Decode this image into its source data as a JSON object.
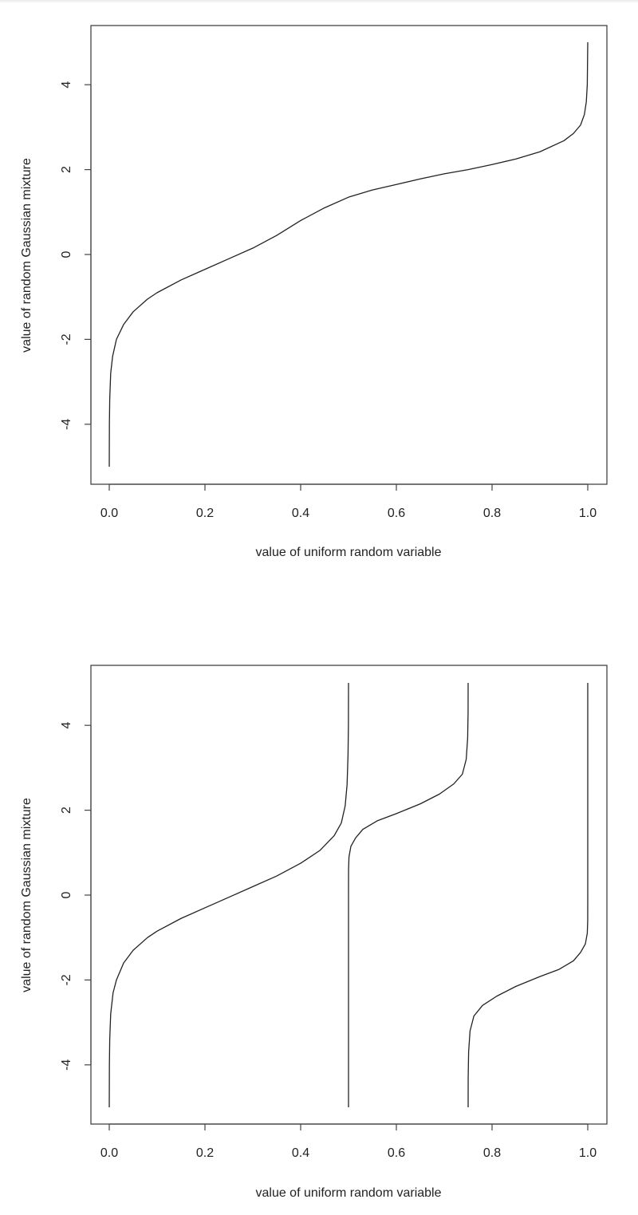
{
  "chart_data": [
    {
      "type": "line",
      "title": "",
      "xlabel": "value of uniform random variable",
      "ylabel": "value of random Gaussian mixture",
      "xlim": [
        0,
        1
      ],
      "ylim": [
        -5,
        5
      ],
      "xticks": [
        "0.0",
        "0.2",
        "0.4",
        "0.6",
        "0.8",
        "1.0"
      ],
      "yticks": [
        "-4",
        "-2",
        "0",
        "2",
        "4"
      ],
      "grid": false,
      "legend": "none",
      "line_color": "#222222",
      "series": [
        {
          "points": [
            [
              0.0,
              -5.0
            ],
            [
              0.0003,
              -4.0
            ],
            [
              0.001,
              -3.4
            ],
            [
              0.003,
              -2.8
            ],
            [
              0.007,
              -2.4
            ],
            [
              0.015,
              -2.0
            ],
            [
              0.03,
              -1.65
            ],
            [
              0.05,
              -1.35
            ],
            [
              0.08,
              -1.05
            ],
            [
              0.1,
              -0.9
            ],
            [
              0.15,
              -0.6
            ],
            [
              0.2,
              -0.35
            ],
            [
              0.25,
              -0.1
            ],
            [
              0.3,
              0.15
            ],
            [
              0.35,
              0.45
            ],
            [
              0.4,
              0.8
            ],
            [
              0.45,
              1.1
            ],
            [
              0.5,
              1.35
            ],
            [
              0.55,
              1.52
            ],
            [
              0.6,
              1.65
            ],
            [
              0.65,
              1.78
            ],
            [
              0.7,
              1.9
            ],
            [
              0.75,
              2.0
            ],
            [
              0.8,
              2.12
            ],
            [
              0.85,
              2.25
            ],
            [
              0.9,
              2.42
            ],
            [
              0.95,
              2.68
            ],
            [
              0.97,
              2.85
            ],
            [
              0.985,
              3.05
            ],
            [
              0.993,
              3.3
            ],
            [
              0.997,
              3.6
            ],
            [
              0.999,
              4.0
            ],
            [
              1.0,
              5.0
            ]
          ]
        }
      ]
    },
    {
      "type": "line",
      "title": "",
      "xlabel": "value of uniform random variable",
      "ylabel": "value of random Gaussian mixture",
      "xlim": [
        0,
        1
      ],
      "ylim": [
        -5,
        5
      ],
      "xticks": [
        "0.0",
        "0.2",
        "0.4",
        "0.6",
        "0.8",
        "1.0"
      ],
      "yticks": [
        "-4",
        "-2",
        "0",
        "2",
        "4"
      ],
      "grid": false,
      "legend": "none",
      "line_color": "#222222",
      "series": [
        {
          "points": [
            [
              0.0,
              -5.0
            ],
            [
              0.0003,
              -4.0
            ],
            [
              0.001,
              -3.4
            ],
            [
              0.003,
              -2.8
            ],
            [
              0.008,
              -2.3
            ],
            [
              0.015,
              -2.0
            ],
            [
              0.03,
              -1.6
            ],
            [
              0.05,
              -1.3
            ],
            [
              0.08,
              -1.0
            ],
            [
              0.1,
              -0.85
            ],
            [
              0.15,
              -0.55
            ],
            [
              0.2,
              -0.3
            ],
            [
              0.25,
              -0.05
            ],
            [
              0.3,
              0.2
            ],
            [
              0.35,
              0.45
            ],
            [
              0.4,
              0.75
            ],
            [
              0.44,
              1.05
            ],
            [
              0.47,
              1.4
            ],
            [
              0.485,
              1.7
            ],
            [
              0.493,
              2.1
            ],
            [
              0.497,
              2.6
            ],
            [
              0.499,
              3.3
            ],
            [
              0.4998,
              4.0
            ],
            [
              0.5,
              5.0
            ]
          ]
        },
        {
          "points": [
            [
              0.5,
              -5.0
            ],
            [
              0.5,
              0.0
            ],
            [
              0.5001,
              0.6
            ],
            [
              0.501,
              0.9
            ],
            [
              0.505,
              1.15
            ],
            [
              0.515,
              1.35
            ],
            [
              0.53,
              1.55
            ],
            [
              0.56,
              1.75
            ],
            [
              0.6,
              1.92
            ],
            [
              0.65,
              2.15
            ],
            [
              0.69,
              2.38
            ],
            [
              0.72,
              2.62
            ],
            [
              0.738,
              2.85
            ],
            [
              0.746,
              3.2
            ],
            [
              0.749,
              3.7
            ],
            [
              0.7499,
              4.3
            ],
            [
              0.75,
              5.0
            ]
          ]
        },
        {
          "points": [
            [
              0.75,
              -5.0
            ],
            [
              0.7501,
              -4.3
            ],
            [
              0.751,
              -3.7
            ],
            [
              0.754,
              -3.2
            ],
            [
              0.762,
              -2.85
            ],
            [
              0.78,
              -2.6
            ],
            [
              0.81,
              -2.38
            ],
            [
              0.85,
              -2.15
            ],
            [
              0.9,
              -1.92
            ],
            [
              0.94,
              -1.75
            ],
            [
              0.97,
              -1.55
            ],
            [
              0.985,
              -1.35
            ],
            [
              0.995,
              -1.15
            ],
            [
              0.999,
              -0.9
            ],
            [
              0.9999,
              -0.6
            ],
            [
              1.0,
              0.0
            ],
            [
              1.0,
              5.0
            ]
          ]
        }
      ]
    }
  ]
}
